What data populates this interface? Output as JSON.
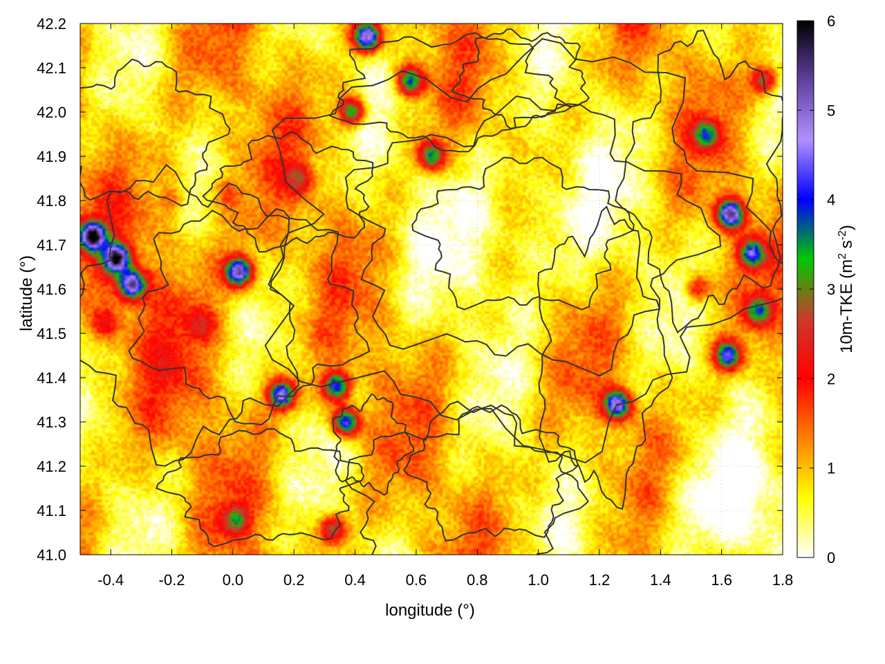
{
  "chart_data": {
    "type": "heatmap",
    "xlabel": "longitude (°)",
    "ylabel": "latitude (°)",
    "colorbar_label": "10m-TKE (m",
    "colorbar_label_sup1": "2",
    "colorbar_label_mid": " s",
    "colorbar_label_sup2": "-2",
    "colorbar_label_end": ")",
    "xlim": [
      -0.5,
      1.8
    ],
    "ylim": [
      41.0,
      42.2
    ],
    "x_ticks": [
      "-0.4",
      "-0.2",
      "0.0",
      "0.2",
      "0.4",
      "0.6",
      "0.8",
      "1.0",
      "1.2",
      "1.4",
      "1.6",
      "1.8"
    ],
    "x_tick_values": [
      -0.4,
      -0.2,
      0.0,
      0.2,
      0.4,
      0.6,
      0.8,
      1.0,
      1.2,
      1.4,
      1.6,
      1.8
    ],
    "y_ticks": [
      "41.0",
      "41.1",
      "41.2",
      "41.3",
      "41.4",
      "41.5",
      "41.6",
      "41.7",
      "41.8",
      "41.9",
      "42.0",
      "42.1",
      "42.2"
    ],
    "y_tick_values": [
      41.0,
      41.1,
      41.2,
      41.3,
      41.4,
      41.5,
      41.6,
      41.7,
      41.8,
      41.9,
      42.0,
      42.1,
      42.2
    ],
    "colorbar_ticks": [
      "0",
      "1",
      "2",
      "3",
      "4",
      "5",
      "6"
    ],
    "colorbar_range": [
      0,
      6
    ],
    "colormap": [
      "#ffffff",
      "#ffff00",
      "#ff8000",
      "#ff0000",
      "#cc3a2a",
      "#00c800",
      "#0000ff",
      "#b090ff",
      "#6040a0",
      "#000000"
    ],
    "grid": true,
    "contours": true,
    "hotspots": [
      {
        "lon": -0.46,
        "lat": 41.72,
        "tke": 5.8
      },
      {
        "lon": -0.38,
        "lat": 41.67,
        "tke": 5.5
      },
      {
        "lon": -0.33,
        "lat": 41.61,
        "tke": 5.2
      },
      {
        "lon": 0.02,
        "lat": 41.64,
        "tke": 5.6
      },
      {
        "lon": 0.16,
        "lat": 41.36,
        "tke": 5.3
      },
      {
        "lon": 0.37,
        "lat": 41.3,
        "tke": 5.0
      },
      {
        "lon": 0.34,
        "lat": 41.38,
        "tke": 4.8
      },
      {
        "lon": 1.26,
        "lat": 41.34,
        "tke": 5.2
      },
      {
        "lon": 1.63,
        "lat": 41.77,
        "tke": 5.6
      },
      {
        "lon": 1.62,
        "lat": 41.45,
        "tke": 4.5
      },
      {
        "lon": 1.7,
        "lat": 41.68,
        "tke": 4.3
      },
      {
        "lon": 0.44,
        "lat": 42.17,
        "tke": 5.4
      },
      {
        "lon": 0.58,
        "lat": 42.07,
        "tke": 4.2
      },
      {
        "lon": 0.65,
        "lat": 41.9,
        "tke": 4.0
      },
      {
        "lon": 0.39,
        "lat": 42.0,
        "tke": 4.1
      },
      {
        "lon": 1.55,
        "lat": 41.95,
        "tke": 3.5
      },
      {
        "lon": 1.74,
        "lat": 42.07,
        "tke": 3.6
      },
      {
        "lon": 0.01,
        "lat": 41.08,
        "tke": 3.2
      },
      {
        "lon": 0.33,
        "lat": 41.06,
        "tke": 3.4
      },
      {
        "lon": -0.2,
        "lat": 41.8,
        "tke": 2.0
      },
      {
        "lon": -0.1,
        "lat": 41.52,
        "tke": 2.1
      },
      {
        "lon": -0.42,
        "lat": 41.52,
        "tke": 2.2
      },
      {
        "lon": -0.02,
        "lat": 41.82,
        "tke": 1.9
      },
      {
        "lon": 0.22,
        "lat": 41.85,
        "tke": 2.6
      },
      {
        "lon": 1.52,
        "lat": 41.6,
        "tke": 3.0
      },
      {
        "lon": 1.72,
        "lat": 41.55,
        "tke": 3.6
      }
    ]
  }
}
